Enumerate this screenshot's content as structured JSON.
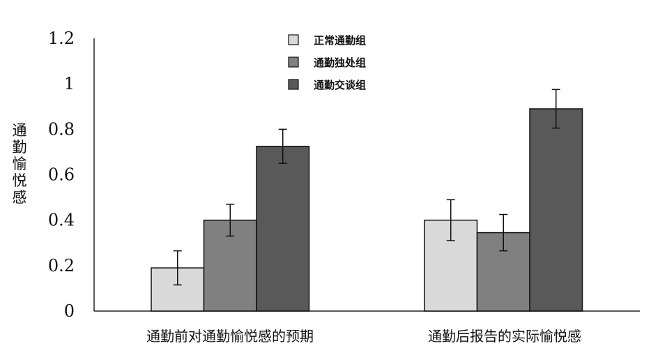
{
  "chart_data": {
    "type": "bar",
    "categories": [
      "通勤前对通勤愉悦感的预期",
      "通勤后报告的实际愉悦感"
    ],
    "series": [
      {
        "name": "正常通勤组",
        "values": [
          0.19,
          0.4
        ],
        "errors": [
          0.075,
          0.09
        ],
        "color": "#d9d9d9"
      },
      {
        "name": "通勤独处组",
        "values": [
          0.4,
          0.345
        ],
        "errors": [
          0.07,
          0.08
        ],
        "color": "#808080"
      },
      {
        "name": "通勤交谈组",
        "values": [
          0.725,
          0.89
        ],
        "errors": [
          0.075,
          0.085
        ],
        "color": "#595959"
      }
    ],
    "ylabel": "通勤愉悦感",
    "ylim": [
      0,
      1.2
    ],
    "yticks": [
      "0",
      "0.2",
      "0.4",
      "0.6",
      "0.8",
      "1",
      "1.2"
    ],
    "legend_position": "top-center",
    "grid": false
  }
}
